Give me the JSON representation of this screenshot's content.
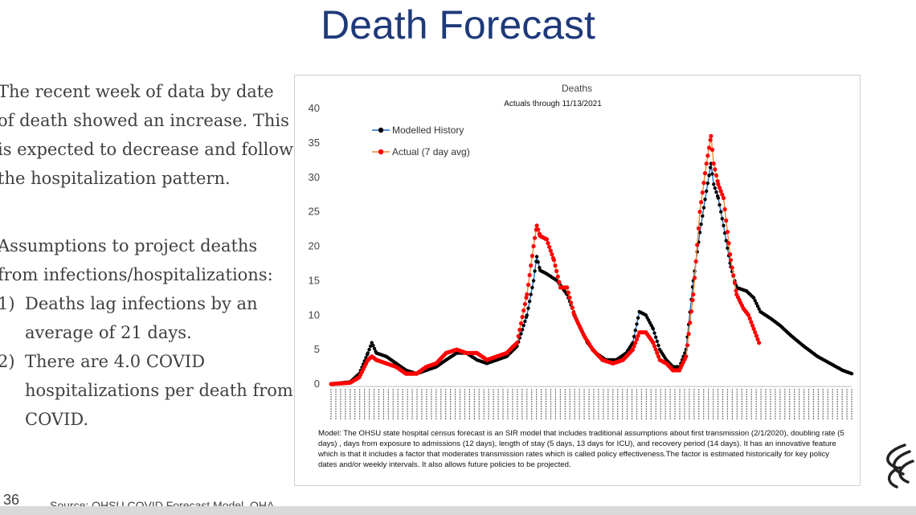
{
  "slide": {
    "title": "Death Forecast",
    "paragraph1": "The recent week of data by date of death showed an increase. This is expected to decrease and follow the hospitalization pattern.",
    "paragraph2": "Assumptions to project deaths from infections/hospitalizations:",
    "list": [
      {
        "num": "1)",
        "text": "Deaths lag infections by an average of 21 days."
      },
      {
        "num": "2)",
        "text": "There are 4.0 COVID hospitalizations per death from COVID."
      }
    ],
    "slide_number": "36",
    "source": "Source: OHSU COVID Forecast Model, OHA",
    "model_note": "Model: The OHSU state hospital census forecast is an SIR model that includes traditional assumptions about first transmission (2/1/2020), doubling rate (5  days) , days from exposure to admissions (12 days), length of stay (5 days, 13 days for ICU), and recovery period (14 days). It has an innovative feature which is that it includes a factor that moderates transmission rates which is called policy effectiveness.The factor is estimated historically for key policy dates and/or weekly intervals. It also allows future policies to be projected.",
    "logo_icon": "ohsu-logo-icon"
  },
  "chart_data": {
    "type": "line",
    "title": "Deaths",
    "subtitle": "Actuals through  11/13/2021",
    "xlabel": "",
    "ylabel": "",
    "ylim": [
      0,
      40
    ],
    "yticks": [
      0,
      5,
      10,
      15,
      20,
      25,
      30,
      35,
      40
    ],
    "xlim": [
      "2020-02-01",
      "2022-04-03"
    ],
    "x_tick_note": "Daily date labels (m/d/yyyy), rotated 90°, too small to read individually",
    "grid": false,
    "legend_position": "top-left",
    "series": [
      {
        "name": "Modelled History",
        "color": "#000000",
        "marker_color": "#000000",
        "line_color": "#1f6fc5",
        "points": [
          [
            "2020-02-01",
            0
          ],
          [
            "2020-03-01",
            0.3
          ],
          [
            "2020-03-15",
            1.5
          ],
          [
            "2020-03-28",
            4.5
          ],
          [
            "2020-04-03",
            6
          ],
          [
            "2020-04-10",
            4.5
          ],
          [
            "2020-04-25",
            4
          ],
          [
            "2020-05-10",
            3
          ],
          [
            "2020-05-25",
            2
          ],
          [
            "2020-06-10",
            1.5
          ],
          [
            "2020-06-25",
            2
          ],
          [
            "2020-07-10",
            2.5
          ],
          [
            "2020-07-25",
            3.5
          ],
          [
            "2020-08-10",
            4.5
          ],
          [
            "2020-08-25",
            4.5
          ],
          [
            "2020-09-10",
            3.5
          ],
          [
            "2020-09-25",
            3
          ],
          [
            "2020-10-10",
            3.5
          ],
          [
            "2020-10-25",
            4
          ],
          [
            "2020-11-10",
            5.5
          ],
          [
            "2020-11-25",
            10
          ],
          [
            "2020-12-05",
            15
          ],
          [
            "2020-12-10",
            18.5
          ],
          [
            "2020-12-15",
            16.5
          ],
          [
            "2020-12-25",
            16
          ],
          [
            "2021-01-10",
            15
          ],
          [
            "2021-01-25",
            13
          ],
          [
            "2021-02-10",
            9
          ],
          [
            "2021-02-25",
            6
          ],
          [
            "2021-03-10",
            4.5
          ],
          [
            "2021-03-25",
            3.5
          ],
          [
            "2021-04-10",
            3.5
          ],
          [
            "2021-04-25",
            4.5
          ],
          [
            "2021-05-05",
            6
          ],
          [
            "2021-05-15",
            10.5
          ],
          [
            "2021-05-25",
            10
          ],
          [
            "2021-06-05",
            8
          ],
          [
            "2021-06-15",
            5
          ],
          [
            "2021-06-25",
            3.5
          ],
          [
            "2021-07-05",
            2.5
          ],
          [
            "2021-07-15",
            2.5
          ],
          [
            "2021-07-25",
            5
          ],
          [
            "2021-08-05",
            15
          ],
          [
            "2021-08-15",
            22
          ],
          [
            "2021-08-25",
            28
          ],
          [
            "2021-09-01",
            32
          ],
          [
            "2021-09-05",
            29
          ],
          [
            "2021-09-12",
            27
          ],
          [
            "2021-09-20",
            23
          ],
          [
            "2021-10-01",
            17
          ],
          [
            "2021-10-10",
            14
          ],
          [
            "2021-10-25",
            13.5
          ],
          [
            "2021-11-05",
            12.5
          ],
          [
            "2021-11-15",
            10.5
          ],
          [
            "2021-12-01",
            9.5
          ],
          [
            "2021-12-15",
            8.5
          ],
          [
            "2022-01-01",
            7
          ],
          [
            "2022-01-20",
            5.5
          ],
          [
            "2022-02-10",
            4
          ],
          [
            "2022-03-01",
            3
          ],
          [
            "2022-03-20",
            2
          ],
          [
            "2022-04-03",
            1.5
          ]
        ]
      },
      {
        "name": "Actual (7 day avg)",
        "color": "#ff0000",
        "marker_color": "#ff0000",
        "line_color": "#f08a30",
        "points": [
          [
            "2020-02-01",
            0
          ],
          [
            "2020-03-01",
            0.2
          ],
          [
            "2020-03-15",
            1
          ],
          [
            "2020-03-28",
            3.5
          ],
          [
            "2020-04-03",
            4
          ],
          [
            "2020-04-10",
            3.5
          ],
          [
            "2020-04-25",
            3
          ],
          [
            "2020-05-10",
            2.5
          ],
          [
            "2020-05-25",
            1.5
          ],
          [
            "2020-06-10",
            1.5
          ],
          [
            "2020-06-25",
            2.5
          ],
          [
            "2020-07-10",
            3
          ],
          [
            "2020-07-25",
            4.5
          ],
          [
            "2020-08-10",
            5
          ],
          [
            "2020-08-25",
            4.5
          ],
          [
            "2020-09-10",
            4.5
          ],
          [
            "2020-09-25",
            3.5
          ],
          [
            "2020-10-10",
            4
          ],
          [
            "2020-10-25",
            4.5
          ],
          [
            "2020-11-10",
            6
          ],
          [
            "2020-11-25",
            13
          ],
          [
            "2020-12-05",
            20
          ],
          [
            "2020-12-10",
            23
          ],
          [
            "2020-12-15",
            21.5
          ],
          [
            "2020-12-25",
            21
          ],
          [
            "2021-01-05",
            18
          ],
          [
            "2021-01-15",
            14
          ],
          [
            "2021-01-25",
            14
          ],
          [
            "2021-02-05",
            10
          ],
          [
            "2021-02-20",
            7
          ],
          [
            "2021-03-05",
            5
          ],
          [
            "2021-03-20",
            3.5
          ],
          [
            "2021-04-05",
            3
          ],
          [
            "2021-04-20",
            3.5
          ],
          [
            "2021-05-05",
            5
          ],
          [
            "2021-05-15",
            7.5
          ],
          [
            "2021-05-25",
            7.5
          ],
          [
            "2021-06-05",
            6
          ],
          [
            "2021-06-15",
            3.5
          ],
          [
            "2021-06-25",
            3
          ],
          [
            "2021-07-05",
            2
          ],
          [
            "2021-07-15",
            2
          ],
          [
            "2021-07-25",
            4
          ],
          [
            "2021-08-05",
            13
          ],
          [
            "2021-08-15",
            25
          ],
          [
            "2021-08-25",
            32
          ],
          [
            "2021-09-01",
            36
          ],
          [
            "2021-09-05",
            32
          ],
          [
            "2021-09-12",
            29
          ],
          [
            "2021-09-20",
            27
          ],
          [
            "2021-10-01",
            18
          ],
          [
            "2021-10-10",
            13
          ],
          [
            "2021-10-20",
            11
          ],
          [
            "2021-10-28",
            10
          ],
          [
            "2021-11-05",
            8
          ],
          [
            "2021-11-13",
            6
          ]
        ]
      }
    ]
  }
}
